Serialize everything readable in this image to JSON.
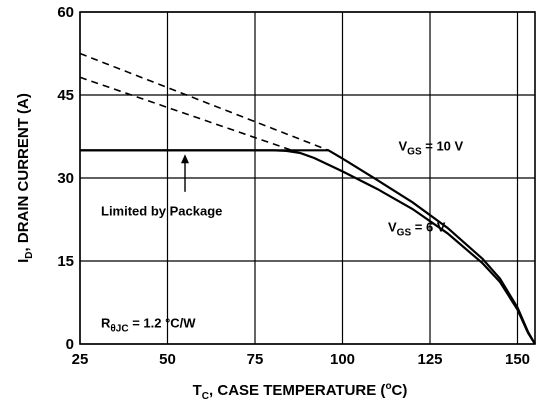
{
  "chart_data": {
    "type": "line",
    "xlabel": {
      "prefix": "T",
      "sub": "C",
      "rest": ", CASE TEMPERATURE (",
      "deg": "o",
      "unit": "C)"
    },
    "ylabel": {
      "prefix": "I",
      "sub": "D",
      "rest": ", DRAIN CURRENT (A)"
    },
    "xlim": [
      25,
      155
    ],
    "ylim": [
      0,
      60
    ],
    "xticks": [
      25,
      50,
      75,
      100,
      125,
      150
    ],
    "yticks": [
      0,
      15,
      30,
      45,
      60
    ],
    "grid": true,
    "series": [
      {
        "style": "solid",
        "points": [
          [
            25,
            35
          ],
          [
            80,
            35
          ],
          [
            84,
            34.9
          ],
          [
            88,
            34.5
          ],
          [
            92,
            33.6
          ],
          [
            100,
            31.2
          ],
          [
            110,
            28.0
          ],
          [
            120,
            24.4
          ],
          [
            130,
            20.0
          ],
          [
            140,
            14.6
          ],
          [
            145,
            11.2
          ],
          [
            150,
            6.2
          ],
          [
            153,
            2.0
          ],
          [
            155,
            0
          ]
        ]
      },
      {
        "style": "solid",
        "points": [
          [
            25,
            35
          ],
          [
            96,
            35
          ],
          [
            100,
            33.5
          ],
          [
            110,
            29.6
          ],
          [
            120,
            25.6
          ],
          [
            130,
            21.0
          ],
          [
            140,
            15.4
          ],
          [
            145,
            11.8
          ],
          [
            150,
            6.6
          ],
          [
            153,
            2.2
          ],
          [
            155,
            0
          ]
        ]
      },
      {
        "style": "dashed",
        "points": [
          [
            25,
            52.5
          ],
          [
            96,
            35
          ]
        ]
      },
      {
        "style": "dashed",
        "points": [
          [
            25,
            48.2
          ],
          [
            92,
            33.6
          ]
        ]
      }
    ],
    "annotations": [
      {
        "id": "vgs10",
        "main": "V",
        "sub": "GS",
        "rest": " = 10 V",
        "x": 116,
        "y": 35
      },
      {
        "id": "vgs6",
        "main": "V",
        "sub": "GS",
        "rest": " = 6 V",
        "x": 113,
        "y": 20.3
      },
      {
        "id": "limited",
        "text": "Limited by Package",
        "x": 31,
        "y": 23.2
      },
      {
        "id": "rth",
        "main": "R",
        "sub": "θJC",
        "rest": " = 1.2 °C/W",
        "x": 31,
        "y": 3.0
      }
    ],
    "arrow": {
      "from": [
        55,
        27.5
      ],
      "to": [
        55,
        34.3
      ]
    }
  }
}
